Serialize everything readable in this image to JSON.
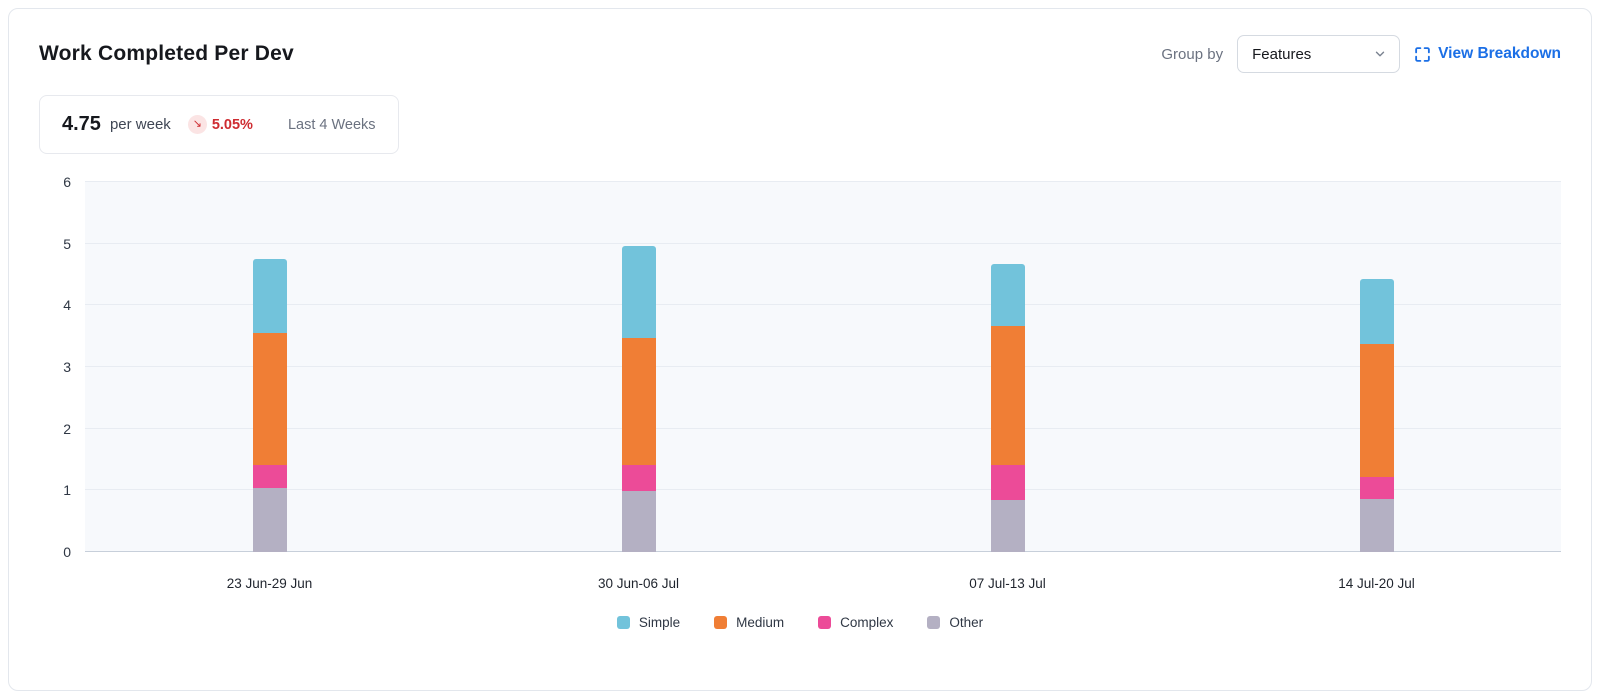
{
  "header": {
    "title": "Work Completed Per Dev",
    "group_by_label": "Group by",
    "group_by_value": "Features",
    "view_breakdown_label": "View Breakdown"
  },
  "stat": {
    "value": "4.75",
    "unit": "per week",
    "delta": "5.05%",
    "delta_direction": "down",
    "delta_arrow": "↘",
    "period": "Last 4 Weeks"
  },
  "chart_data": {
    "type": "bar",
    "stacked": true,
    "title": "Work Completed Per Dev",
    "xlabel": "",
    "ylabel": "",
    "categories": [
      "23 Jun-29 Jun",
      "30 Jun-06 Jul",
      "07 Jul-13 Jul",
      "14 Jul-20 Jul"
    ],
    "series": [
      {
        "name": "Simple",
        "color": "#72C3DB",
        "values": [
          1.21,
          1.49,
          1.01,
          1.05
        ]
      },
      {
        "name": "Medium",
        "color": "#F07E35",
        "values": [
          2.14,
          2.06,
          2.25,
          2.15
        ]
      },
      {
        "name": "Complex",
        "color": "#EC4B98",
        "values": [
          0.37,
          0.42,
          0.57,
          0.36
        ]
      },
      {
        "name": "Other",
        "color": "#B4B0C3",
        "values": [
          1.04,
          0.99,
          0.84,
          0.86
        ]
      }
    ],
    "stack_order_bottom_to_top": [
      "Other",
      "Complex",
      "Medium",
      "Simple"
    ],
    "totals": [
      4.76,
      4.96,
      4.67,
      4.42
    ],
    "ylim": [
      0,
      6
    ],
    "yticks": [
      0,
      1,
      2,
      3,
      4,
      5,
      6
    ],
    "grid": "horizontal",
    "legend_position": "bottom",
    "plot_background": "#F7F9FC"
  },
  "colors": {
    "accent_blue": "#1B6FE6",
    "delta_red": "#CE2C31",
    "grid_line": "#E8ECF2"
  }
}
